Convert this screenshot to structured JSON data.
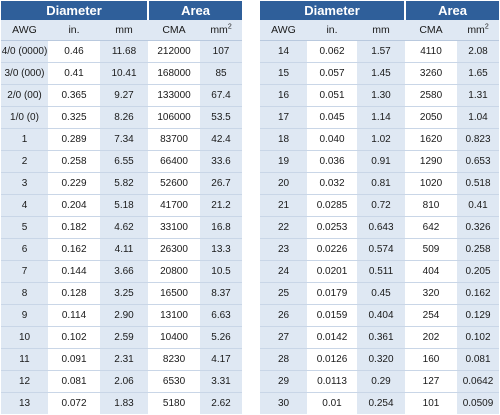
{
  "headers": {
    "diameter": "Diameter",
    "area": "Area",
    "awg": "AWG",
    "in": "in.",
    "mm": "mm",
    "cma": "CMA",
    "mm2_base": "mm",
    "mm2_exp": "2"
  },
  "left_rows": [
    {
      "awg": "4/0 (0000)",
      "in": "0.46",
      "mm": "11.68",
      "cma": "212000",
      "mm2": "107"
    },
    {
      "awg": "3/0 (000)",
      "in": "0.41",
      "mm": "10.41",
      "cma": "168000",
      "mm2": "85"
    },
    {
      "awg": "2/0 (00)",
      "in": "0.365",
      "mm": "9.27",
      "cma": "133000",
      "mm2": "67.4"
    },
    {
      "awg": "1/0 (0)",
      "in": "0.325",
      "mm": "8.26",
      "cma": "106000",
      "mm2": "53.5"
    },
    {
      "awg": "1",
      "in": "0.289",
      "mm": "7.34",
      "cma": "83700",
      "mm2": "42.4"
    },
    {
      "awg": "2",
      "in": "0.258",
      "mm": "6.55",
      "cma": "66400",
      "mm2": "33.6"
    },
    {
      "awg": "3",
      "in": "0.229",
      "mm": "5.82",
      "cma": "52600",
      "mm2": "26.7"
    },
    {
      "awg": "4",
      "in": "0.204",
      "mm": "5.18",
      "cma": "41700",
      "mm2": "21.2"
    },
    {
      "awg": "5",
      "in": "0.182",
      "mm": "4.62",
      "cma": "33100",
      "mm2": "16.8"
    },
    {
      "awg": "6",
      "in": "0.162",
      "mm": "4.11",
      "cma": "26300",
      "mm2": "13.3"
    },
    {
      "awg": "7",
      "in": "0.144",
      "mm": "3.66",
      "cma": "20800",
      "mm2": "10.5"
    },
    {
      "awg": "8",
      "in": "0.128",
      "mm": "3.25",
      "cma": "16500",
      "mm2": "8.37"
    },
    {
      "awg": "9",
      "in": "0.114",
      "mm": "2.90",
      "cma": "13100",
      "mm2": "6.63"
    },
    {
      "awg": "10",
      "in": "0.102",
      "mm": "2.59",
      "cma": "10400",
      "mm2": "5.26"
    },
    {
      "awg": "11",
      "in": "0.091",
      "mm": "2.31",
      "cma": "8230",
      "mm2": "4.17"
    },
    {
      "awg": "12",
      "in": "0.081",
      "mm": "2.06",
      "cma": "6530",
      "mm2": "3.31"
    },
    {
      "awg": "13",
      "in": "0.072",
      "mm": "1.83",
      "cma": "5180",
      "mm2": "2.62"
    }
  ],
  "right_rows": [
    {
      "awg": "14",
      "in": "0.062",
      "mm": "1.57",
      "cma": "4110",
      "mm2": "2.08"
    },
    {
      "awg": "15",
      "in": "0.057",
      "mm": "1.45",
      "cma": "3260",
      "mm2": "1.65"
    },
    {
      "awg": "16",
      "in": "0.051",
      "mm": "1.30",
      "cma": "2580",
      "mm2": "1.31"
    },
    {
      "awg": "17",
      "in": "0.045",
      "mm": "1.14",
      "cma": "2050",
      "mm2": "1.04"
    },
    {
      "awg": "18",
      "in": "0.040",
      "mm": "1.02",
      "cma": "1620",
      "mm2": "0.823"
    },
    {
      "awg": "19",
      "in": "0.036",
      "mm": "0.91",
      "cma": "1290",
      "mm2": "0.653"
    },
    {
      "awg": "20",
      "in": "0.032",
      "mm": "0.81",
      "cma": "1020",
      "mm2": "0.518"
    },
    {
      "awg": "21",
      "in": "0.0285",
      "mm": "0.72",
      "cma": "810",
      "mm2": "0.41"
    },
    {
      "awg": "22",
      "in": "0.0253",
      "mm": "0.643",
      "cma": "642",
      "mm2": "0.326"
    },
    {
      "awg": "23",
      "in": "0.0226",
      "mm": "0.574",
      "cma": "509",
      "mm2": "0.258"
    },
    {
      "awg": "24",
      "in": "0.0201",
      "mm": "0.511",
      "cma": "404",
      "mm2": "0.205"
    },
    {
      "awg": "25",
      "in": "0.0179",
      "mm": "0.45",
      "cma": "320",
      "mm2": "0.162"
    },
    {
      "awg": "26",
      "in": "0.0159",
      "mm": "0.404",
      "cma": "254",
      "mm2": "0.129"
    },
    {
      "awg": "27",
      "in": "0.0142",
      "mm": "0.361",
      "cma": "202",
      "mm2": "0.102"
    },
    {
      "awg": "28",
      "in": "0.0126",
      "mm": "0.320",
      "cma": "160",
      "mm2": "0.081"
    },
    {
      "awg": "29",
      "in": "0.0113",
      "mm": "0.29",
      "cma": "127",
      "mm2": "0.0642"
    },
    {
      "awg": "30",
      "in": "0.01",
      "mm": "0.254",
      "cma": "101",
      "mm2": "0.0509"
    }
  ],
  "colors": {
    "header_blue": "#2f5f9a",
    "shade_blue": "#dfe8f3"
  }
}
